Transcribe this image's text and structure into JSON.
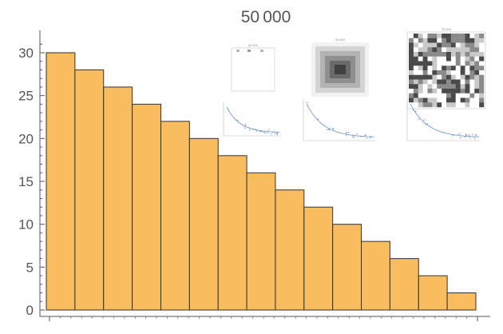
{
  "chart_data": {
    "type": "bar",
    "title": "50 000",
    "values": [
      30,
      28,
      26,
      24,
      22,
      20,
      18,
      16,
      14,
      12,
      10,
      8,
      6,
      4,
      2
    ],
    "ylim": [
      0,
      32
    ],
    "yticks": [
      0,
      5,
      10,
      15,
      20,
      25,
      30
    ],
    "xlabel": "",
    "ylabel": "",
    "grid": false,
    "legend": "none",
    "bar_color": "#f9bc5e",
    "bar_edge_color": "#333333",
    "axis_color": "#555555"
  },
  "insets": {
    "titles": [
      "50 000",
      "50 000",
      "10 000"
    ]
  }
}
